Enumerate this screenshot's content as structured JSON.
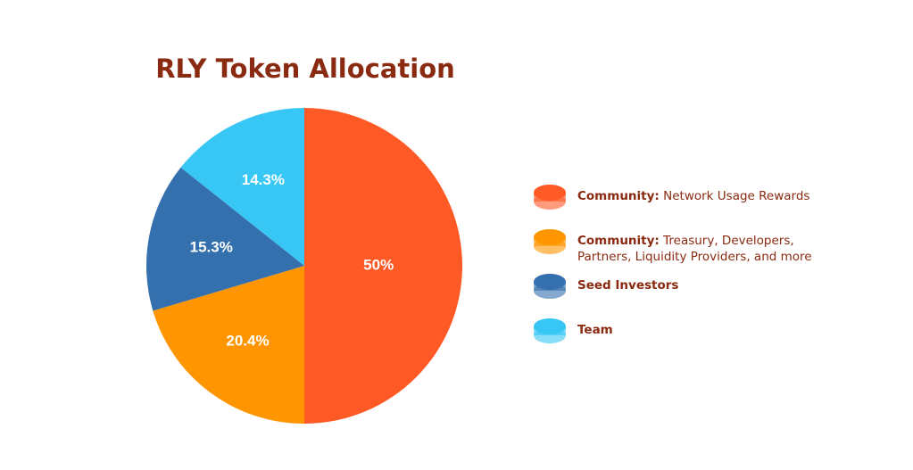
{
  "chart_data": {
    "type": "pie",
    "title": "RLY Token Allocation",
    "legend": [
      {
        "bold": "Community:",
        "text": "Network Usage Rewards"
      },
      {
        "bold": "Community:",
        "text": "Treasury, Developers, Partners, Liquidity Providers, and more"
      },
      {
        "bold": "Seed Investors"
      },
      {
        "bold": "Team"
      }
    ],
    "values": [
      50,
      20.4,
      15.3,
      14.3
    ],
    "value_labels": [
      "50%",
      "20.4%",
      "15.3%",
      "14.3%"
    ],
    "colors": [
      "#ff5a26",
      "#ff9500",
      "#3370ad",
      "#38c6f5"
    ],
    "legend_position": "right"
  }
}
